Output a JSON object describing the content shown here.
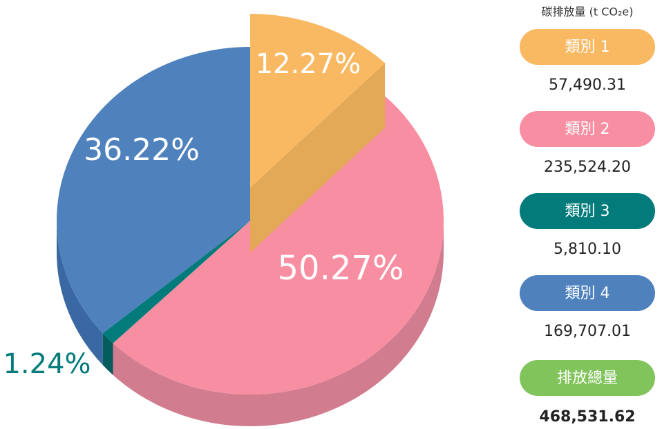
{
  "chart_data": {
    "type": "pie",
    "title": "碳排放量 (t CO₂e)",
    "categories": [
      "類別 1",
      "類別 2",
      "類別 3",
      "類別 4"
    ],
    "values": [
      12.27,
      50.27,
      1.24,
      36.22
    ],
    "value_labels": [
      "12.27%",
      "50.27%",
      "1.24%",
      "36.22%"
    ],
    "colors": [
      "#f9b963",
      "#f88ea1",
      "#037b7b",
      "#4f81bd"
    ],
    "emissions": {
      "values": [
        57490.31,
        235524.2,
        5810.1,
        169707.01
      ],
      "value_labels": [
        "57,490.31",
        "235,524.20",
        "5,810.10",
        "169,707.01"
      ]
    },
    "total": {
      "label": "排放總量",
      "value": 468531.62,
      "value_label": "468,531.62",
      "color": "#82c45c"
    }
  }
}
